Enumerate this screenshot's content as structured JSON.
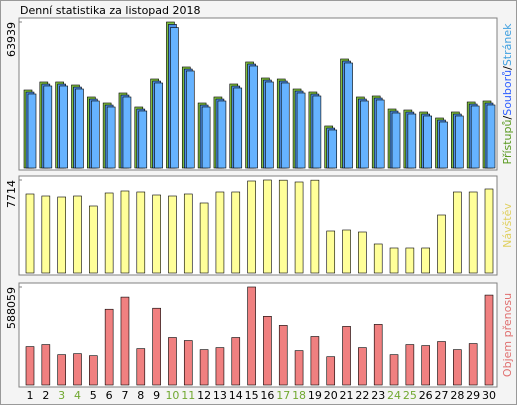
{
  "chart_data": [
    {
      "type": "grouped-offset-bar",
      "title": "Denní statistika za listopad 2018",
      "separator": "/",
      "ylim": [
        0,
        63939
      ],
      "yticks": [
        63939
      ],
      "series": [
        {
          "name": "Přístupů",
          "color": "#80c040",
          "label_color": "#5a9a20",
          "values": [
            34160,
            37670,
            37670,
            36350,
            31100,
            28470,
            32850,
            26720,
            38980,
            63939,
            44240,
            28470,
            31100,
            36790,
            46430,
            39420,
            38980,
            34600,
            33290,
            18400,
            47740,
            31100,
            31540,
            25840,
            25400,
            24530,
            21900,
            24530,
            28910,
            29350
          ]
        },
        {
          "name": "Souborů",
          "color": "#4d8fe6",
          "label_color": "#3060ff",
          "values": [
            33260,
            36770,
            36770,
            35450,
            30200,
            27570,
            31950,
            25820,
            38080,
            62900,
            43340,
            27570,
            30200,
            35890,
            45530,
            38520,
            38080,
            33700,
            32390,
            17500,
            46840,
            30200,
            30640,
            24940,
            24500,
            23630,
            21000,
            23630,
            28010,
            28450
          ]
        },
        {
          "name": "Stránek",
          "color": "#66b3ff",
          "label_color": "#40a0e0",
          "values": [
            32410,
            35920,
            35920,
            34600,
            29350,
            26720,
            31100,
            24970,
            37230,
            61500,
            42490,
            26720,
            29350,
            35040,
            44680,
            37670,
            37230,
            32850,
            31540,
            16650,
            45990,
            29350,
            29790,
            24090,
            23650,
            22780,
            20150,
            22780,
            27160,
            27600
          ]
        }
      ]
    },
    {
      "type": "bar",
      "ylim": [
        0,
        7714
      ],
      "yticks": [
        7714
      ],
      "series": [
        {
          "name": "Návštěv",
          "color": "#ffff99",
          "label_color": "#e0d060",
          "values": [
            6553,
            6387,
            6304,
            6387,
            5558,
            6636,
            6802,
            6719,
            6470,
            6387,
            6553,
            5807,
            6719,
            6719,
            7631,
            7714,
            7700,
            7548,
            7700,
            3484,
            3567,
            3401,
            2406,
            2074,
            2074,
            2074,
            4811,
            6719,
            6719,
            6968
          ]
        }
      ]
    },
    {
      "type": "bar",
      "ylim": [
        0,
        588059
      ],
      "yticks": [
        588059
      ],
      "categories": [
        "1",
        "2",
        "3",
        "4",
        "5",
        "6",
        "7",
        "8",
        "9",
        "10",
        "11",
        "12",
        "13",
        "14",
        "15",
        "16",
        "17",
        "18",
        "19",
        "20",
        "21",
        "22",
        "23",
        "24",
        "25",
        "26",
        "27",
        "28",
        "29",
        "30"
      ],
      "category_colors": [
        "#000",
        "#000",
        "#70a830",
        "#70a830",
        "#000",
        "#000",
        "#000",
        "#000",
        "#000",
        "#70a830",
        "#70a830",
        "#000",
        "#000",
        "#000",
        "#000",
        "#000",
        "#70a830",
        "#70a830",
        "#000",
        "#000",
        "#000",
        "#000",
        "#000",
        "#70a830",
        "#70a830",
        "#000",
        "#000",
        "#000",
        "#000",
        "#000"
      ],
      "series": [
        {
          "name": "Objem přenosu",
          "color": "#f08080",
          "label_color": "#e07070",
          "values": [
            230360,
            242480,
            181860,
            187920,
            175800,
            454650,
            527390,
            218230,
            460710,
            284910,
            266730,
            212170,
            224290,
            284910,
            588059,
            412220,
            357660,
            206110,
            290980,
            169740,
            351600,
            224290,
            363720,
            181860,
            242480,
            236420,
            260670,
            212170,
            248540,
            539520
          ]
        }
      ]
    }
  ]
}
